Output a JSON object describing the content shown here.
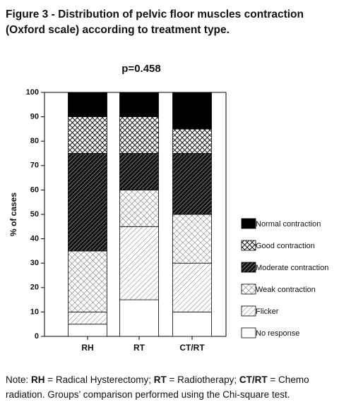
{
  "chart_data": {
    "type": "stacked-bar",
    "title": "Figure 3 - Distribution of pelvic floor muscles contraction (Oxford scale) according to treatment type.",
    "subtitle": "p=0.458",
    "y_label": "% of cases",
    "categories": [
      "RH",
      "RT",
      "CT/RT"
    ],
    "series": [
      {
        "name": "No response",
        "pattern": "p-none",
        "values": [
          5,
          15,
          10
        ]
      },
      {
        "name": "Flicker",
        "pattern": "p-diag",
        "values": [
          5,
          30,
          20
        ]
      },
      {
        "name": "Weak contraction",
        "pattern": "p-lightcross",
        "values": [
          25,
          15,
          20
        ]
      },
      {
        "name": "Moderate contraction",
        "pattern": "p-darkdiag",
        "values": [
          40,
          15,
          25
        ]
      },
      {
        "name": "Good contraction",
        "pattern": "p-darkcross",
        "values": [
          15,
          15,
          10
        ]
      },
      {
        "name": "Normal contraction",
        "pattern": "p-solid",
        "values": [
          10,
          10,
          15
        ]
      }
    ],
    "ylim": [
      0,
      100
    ],
    "yticks": [
      0,
      10,
      20,
      30,
      40,
      50,
      60,
      70,
      80,
      90,
      100
    ],
    "note": [
      "Note: ",
      "RH",
      " = Radical Hysterectomy; ",
      "RT",
      " = Radiotherapy; ",
      "CT/RT",
      " = Chemo radiation. Groups’ comparison performed using the Chi-square test."
    ]
  }
}
